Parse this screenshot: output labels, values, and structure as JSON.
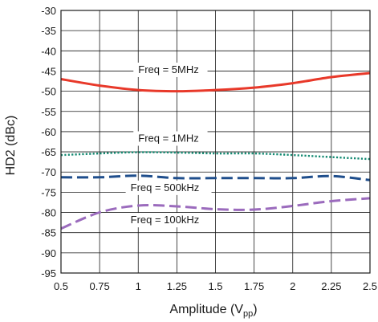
{
  "chart_data": {
    "type": "line",
    "title": "",
    "xlabel": {
      "main": "Amplitude (V",
      "sub": "pp",
      "close": ")"
    },
    "ylabel": "HD2 (dBc)",
    "xlim": [
      0.5,
      2.5
    ],
    "ylim": [
      -95,
      -30
    ],
    "xticks": [
      0.5,
      0.75,
      1,
      1.25,
      1.5,
      1.75,
      2,
      2.25,
      2.5
    ],
    "xtick_labels": [
      "0.5",
      "0.75",
      "1",
      "1.25",
      "1.5",
      "1.75",
      "2",
      "2.25",
      "2.5"
    ],
    "yticks": [
      -30,
      -35,
      -40,
      -45,
      -50,
      -55,
      -60,
      -65,
      -70,
      -75,
      -80,
      -85,
      -90,
      -95
    ],
    "ytick_labels": [
      "-30",
      "-35",
      "-40",
      "-45",
      "-50",
      "-55",
      "-60",
      "-65",
      "-70",
      "-75",
      "-80",
      "-85",
      "-90",
      "-95"
    ],
    "grid": true,
    "series": [
      {
        "name": "Freq = 5MHz",
        "color": "#e8392a",
        "dash": "solid",
        "x": [
          0.5,
          0.75,
          1,
          1.25,
          1.5,
          1.75,
          2,
          2.25,
          2.5
        ],
        "y": [
          -47,
          -48.6,
          -49.7,
          -50.0,
          -49.7,
          -49.1,
          -48.0,
          -46.5,
          -45.5
        ]
      },
      {
        "name": "Freq = 1MHz",
        "color": "#138a72",
        "dash": "dotted",
        "x": [
          0.5,
          0.75,
          1,
          1.25,
          1.5,
          1.75,
          2,
          2.25,
          2.5
        ],
        "y": [
          -65.8,
          -65.4,
          -65.1,
          -65.2,
          -65.4,
          -65.4,
          -65.8,
          -66.3,
          -66.8
        ]
      },
      {
        "name": "Freq = 500kHz",
        "color": "#1f4e8c",
        "dash": "long-dash",
        "x": [
          0.5,
          0.75,
          1,
          1.25,
          1.5,
          1.75,
          2,
          2.25,
          2.5
        ],
        "y": [
          -71.3,
          -71.3,
          -70.9,
          -71.5,
          -71.5,
          -71.5,
          -71.5,
          -71.0,
          -72.0
        ]
      },
      {
        "name": "Freq = 100kHz",
        "color": "#9b6bbd",
        "dash": "long-dash",
        "x": [
          0.5,
          0.75,
          1,
          1.25,
          1.5,
          1.75,
          2,
          2.25,
          2.5
        ],
        "y": [
          -84.0,
          -80.0,
          -78.3,
          -78.5,
          -79.2,
          -79.3,
          -78.4,
          -77.2,
          -76.5
        ]
      }
    ],
    "annotations": [
      {
        "text": "Freq = 5MHz",
        "x": 1.0,
        "y": -45.5
      },
      {
        "text": "Freq = 1MHz",
        "x": 1.0,
        "y": -62.5
      },
      {
        "text": "Freq = 500kHz",
        "x": 0.95,
        "y": -74.7
      },
      {
        "text": "Freq = 100kHz",
        "x": 0.95,
        "y": -82.7
      }
    ]
  }
}
